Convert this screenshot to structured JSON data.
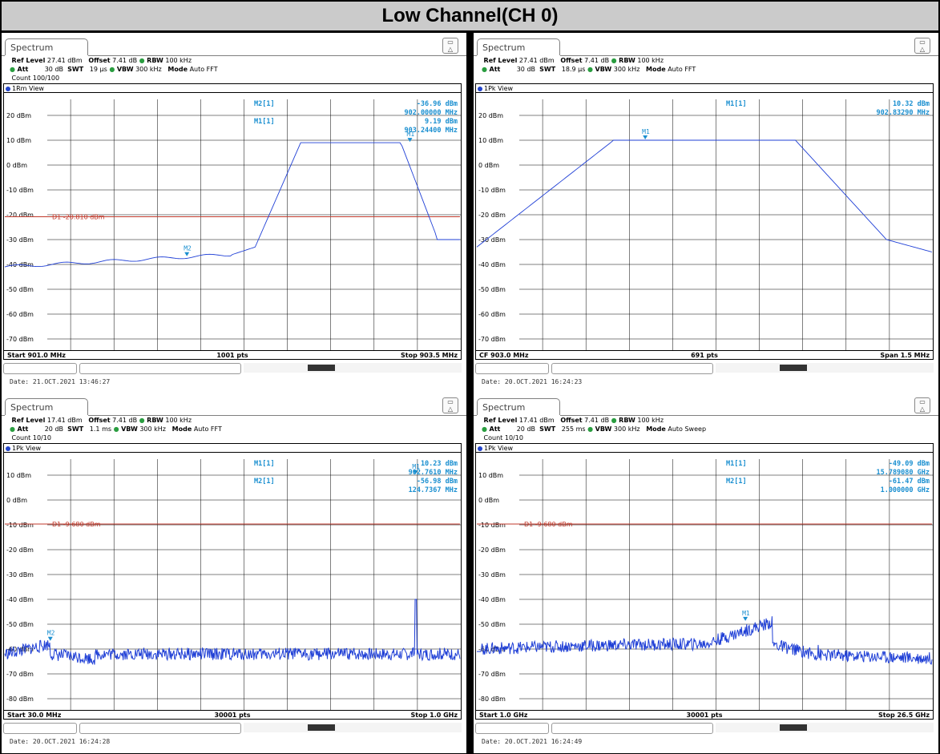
{
  "page_title": "Low Channel(CH 0)",
  "panels": [
    {
      "tab": "Spectrum",
      "ref_level": "27.41 dBm",
      "offset": "7.41 dB",
      "rbw": "100 kHz",
      "att": "30 dB",
      "swt": "19 µs",
      "vbw": "300 kHz",
      "mode": "Auto FFT",
      "count": "Count 100/100",
      "view": "1Rm View",
      "y_labels": [
        "20 dBm",
        "10 dBm",
        "0 dBm",
        "-10 dBm",
        "-20 dBm",
        "-30 dBm",
        "-40 dBm",
        "-50 dBm",
        "-60 dBm",
        "-70 dBm"
      ],
      "footer_left": "Start 901.0 MHz",
      "footer_center": "1001 pts",
      "footer_right": "Stop 903.5 MHz",
      "marker_rows": [
        [
          "M2[1]",
          "-36.96 dBm"
        ],
        [
          "",
          "902.00000 MHz"
        ],
        [
          "M1[1]",
          "9.19 dBm"
        ],
        [
          "",
          "903.24400 MHz"
        ]
      ],
      "display_line": "D1  -20.810 dBm",
      "date": "Date: 21.OCT.2021  13:46:27"
    },
    {
      "tab": "Spectrum",
      "ref_level": "27.41 dBm",
      "offset": "7.41 dB",
      "rbw": "100 kHz",
      "att": "30 dB",
      "swt": "18.9 µs",
      "vbw": "300 kHz",
      "mode": "Auto FFT",
      "count": "",
      "view": "1Pk View",
      "y_labels": [
        "20 dBm",
        "10 dBm",
        "0 dBm",
        "-10 dBm",
        "-20 dBm",
        "-30 dBm",
        "-40 dBm",
        "-50 dBm",
        "-60 dBm",
        "-70 dBm"
      ],
      "footer_left": "CF 903.0 MHz",
      "footer_center": "691 pts",
      "footer_right": "Span 1.5 MHz",
      "marker_rows": [
        [
          "M1[1]",
          "10.32 dBm"
        ],
        [
          "",
          "902.83290 MHz"
        ]
      ],
      "display_line": "",
      "date": "Date: 20.OCT.2021  16:24:23"
    },
    {
      "tab": "Spectrum",
      "ref_level": "17.41 dBm",
      "offset": "7.41 dB",
      "rbw": "100 kHz",
      "att": "20 dB",
      "swt": "1.1 ms",
      "vbw": "300 kHz",
      "mode": "Auto FFT",
      "count": "Count 10/10",
      "view": "1Pk View",
      "y_labels": [
        "10 dBm",
        "0 dBm",
        "-10 dBm",
        "-20 dBm",
        "-30 dBm",
        "-40 dBm",
        "-50 dBm",
        "-60 dBm",
        "-70 dBm",
        "-80 dBm"
      ],
      "footer_left": "Start 30.0 MHz",
      "footer_center": "30001 pts",
      "footer_right": "Stop 1.0 GHz",
      "marker_rows": [
        [
          "M1[1]",
          "10.23 dBm"
        ],
        [
          "",
          "902.7610 MHz"
        ],
        [
          "M2[1]",
          "-56.98 dBm"
        ],
        [
          "",
          "124.7367 MHz"
        ]
      ],
      "display_line": "D1  -9.680 dBm",
      "date": "Date: 20.OCT.2021  16:24:28"
    },
    {
      "tab": "Spectrum",
      "ref_level": "17.41 dBm",
      "offset": "7.41 dB",
      "rbw": "100 kHz",
      "att": "20 dB",
      "swt": "255 ms",
      "vbw": "300 kHz",
      "mode": "Auto Sweep",
      "count": "Count 10/10",
      "view": "1Pk View",
      "y_labels": [
        "10 dBm",
        "0 dBm",
        "-10 dBm",
        "-20 dBm",
        "-30 dBm",
        "-40 dBm",
        "-50 dBm",
        "-60 dBm",
        "-70 dBm",
        "-80 dBm"
      ],
      "footer_left": "Start 1.0 GHz",
      "footer_center": "30001 pts",
      "footer_right": "Stop 26.5 GHz",
      "marker_rows": [
        [
          "M1[1]",
          "-49.09 dBm"
        ],
        [
          "",
          "15.789080 GHz"
        ],
        [
          "M2[1]",
          "-61.47 dBm"
        ],
        [
          "",
          "1.000000 GHz"
        ]
      ],
      "display_line": "D1  -9.680 dBm",
      "date": "Date: 20.OCT.2021  16:24:49"
    }
  ],
  "labels": {
    "ref_level": "Ref Level",
    "offset": "Offset",
    "rbw": "RBW",
    "att": "Att",
    "swt": "SWT",
    "vbw": "VBW",
    "mode": "Mode"
  },
  "markers": [
    "M1",
    "M2"
  ],
  "colors": {
    "trace": "#1f3fd6",
    "marker": "#1a8fd0",
    "display_line": "#c0392b"
  }
}
